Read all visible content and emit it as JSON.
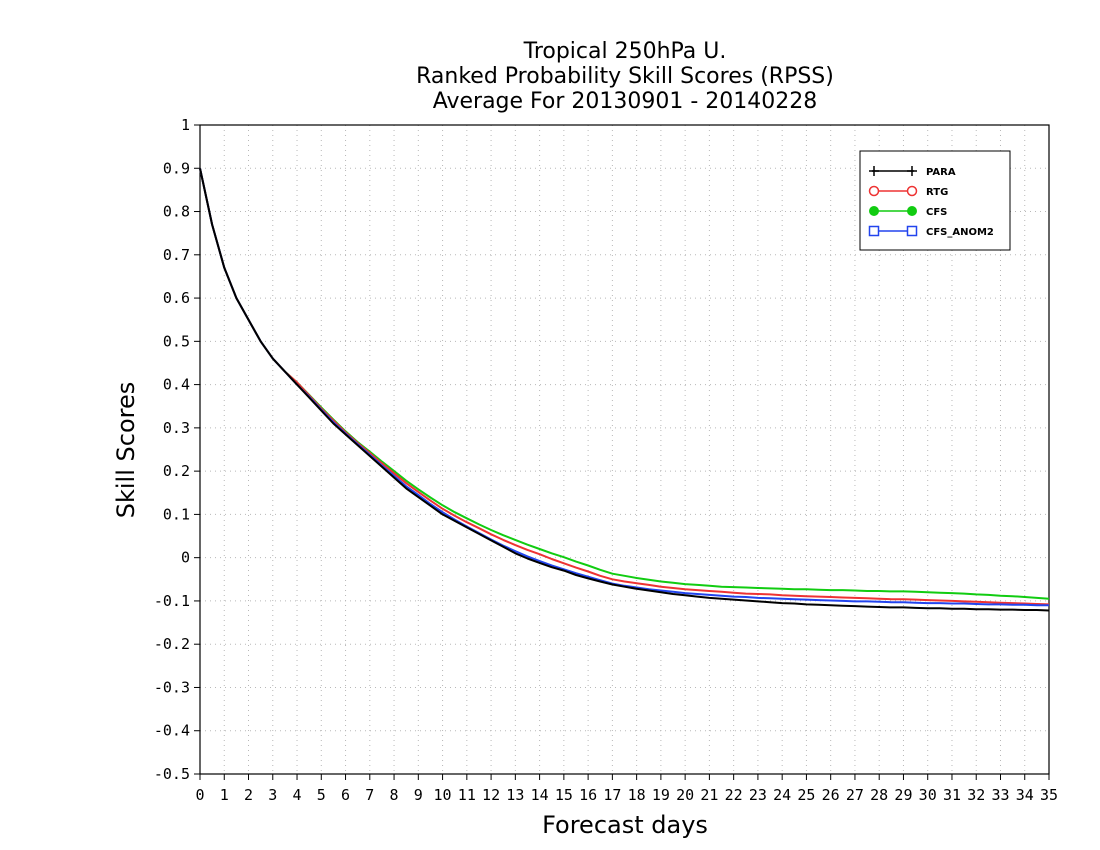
{
  "chart_data": {
    "type": "line",
    "title_lines": [
      "Tropical 250hPa U.",
      "Ranked Probability Skill Scores (RPSS)",
      "Average For 20130901 - 20140228"
    ],
    "xlabel": "Forecast days",
    "ylabel": "Skill Scores",
    "xlim": [
      0,
      35
    ],
    "ylim": [
      -0.5,
      1
    ],
    "xticks": [
      0,
      1,
      2,
      3,
      4,
      5,
      6,
      7,
      8,
      9,
      10,
      11,
      12,
      13,
      14,
      15,
      16,
      17,
      18,
      19,
      20,
      21,
      22,
      23,
      24,
      25,
      26,
      27,
      28,
      29,
      30,
      31,
      32,
      33,
      34,
      35
    ],
    "yticks": [
      -0.5,
      -0.4,
      -0.3,
      -0.2,
      -0.1,
      0,
      0.1,
      0.2,
      0.3,
      0.4,
      0.5,
      0.6,
      0.7,
      0.8,
      0.9,
      1
    ],
    "ytick_labels": [
      "-0.5",
      "-0.4",
      "-0.3",
      "-0.2",
      "-0.1",
      "0",
      "0.1",
      "0.2",
      "0.3",
      "0.4",
      "0.5",
      "0.6",
      "0.7",
      "0.8",
      "0.9",
      "1"
    ],
    "grid": true,
    "legend_position": "top-right",
    "x": [
      0,
      0.5,
      1,
      1.5,
      2,
      2.5,
      3,
      3.5,
      4,
      4.5,
      5,
      5.5,
      6,
      6.5,
      7,
      7.5,
      8,
      8.5,
      9,
      9.5,
      10,
      10.5,
      11,
      11.5,
      12,
      12.5,
      13,
      13.5,
      14,
      14.5,
      15,
      15.5,
      16,
      16.5,
      17,
      17.5,
      18,
      18.5,
      19,
      19.5,
      20,
      20.5,
      21,
      21.5,
      22,
      22.5,
      23,
      23.5,
      24,
      24.5,
      25,
      25.5,
      26,
      26.5,
      27,
      27.5,
      28,
      28.5,
      29,
      29.5,
      30,
      30.5,
      31,
      31.5,
      32,
      32.5,
      33,
      33.5,
      34,
      34.5,
      35
    ],
    "series": [
      {
        "name": "PARA",
        "color": "#000000",
        "marker": "plus",
        "values": [
          0.9,
          0.77,
          0.67,
          0.6,
          0.55,
          0.5,
          0.46,
          0.43,
          0.4,
          0.37,
          0.34,
          0.31,
          0.285,
          0.26,
          0.235,
          0.21,
          0.185,
          0.16,
          0.14,
          0.12,
          0.1,
          0.085,
          0.07,
          0.055,
          0.04,
          0.025,
          0.01,
          -0.002,
          -0.012,
          -0.022,
          -0.03,
          -0.04,
          -0.048,
          -0.055,
          -0.062,
          -0.067,
          -0.072,
          -0.076,
          -0.08,
          -0.084,
          -0.087,
          -0.09,
          -0.093,
          -0.095,
          -0.097,
          -0.099,
          -0.101,
          -0.103,
          -0.105,
          -0.106,
          -0.108,
          -0.109,
          -0.11,
          -0.111,
          -0.112,
          -0.113,
          -0.114,
          -0.115,
          -0.115,
          -0.116,
          -0.117,
          -0.117,
          -0.118,
          -0.118,
          -0.119,
          -0.119,
          -0.12,
          -0.12,
          -0.121,
          -0.121,
          -0.122
        ]
      },
      {
        "name": "RTG",
        "color": "#ee3333",
        "marker": "open-circle",
        "values": [
          0.9,
          0.77,
          0.67,
          0.6,
          0.55,
          0.5,
          0.46,
          0.43,
          0.405,
          0.375,
          0.345,
          0.317,
          0.29,
          0.265,
          0.242,
          0.218,
          0.195,
          0.172,
          0.152,
          0.132,
          0.113,
          0.097,
          0.082,
          0.068,
          0.054,
          0.041,
          0.029,
          0.018,
          0.008,
          -0.003,
          -0.013,
          -0.023,
          -0.032,
          -0.042,
          -0.05,
          -0.055,
          -0.059,
          -0.063,
          -0.067,
          -0.07,
          -0.073,
          -0.075,
          -0.077,
          -0.079,
          -0.081,
          -0.083,
          -0.084,
          -0.085,
          -0.087,
          -0.088,
          -0.089,
          -0.09,
          -0.091,
          -0.092,
          -0.093,
          -0.094,
          -0.095,
          -0.096,
          -0.096,
          -0.097,
          -0.098,
          -0.099,
          -0.1,
          -0.101,
          -0.102,
          -0.103,
          -0.104,
          -0.105,
          -0.106,
          -0.107,
          -0.108
        ]
      },
      {
        "name": "CFS",
        "color": "#11cc11",
        "marker": "filled-circle",
        "values": [
          0.9,
          0.77,
          0.67,
          0.6,
          0.55,
          0.5,
          0.46,
          0.43,
          0.405,
          0.376,
          0.347,
          0.319,
          0.292,
          0.267,
          0.245,
          0.222,
          0.2,
          0.178,
          0.158,
          0.139,
          0.121,
          0.105,
          0.091,
          0.077,
          0.064,
          0.052,
          0.041,
          0.03,
          0.02,
          0.01,
          0.001,
          -0.009,
          -0.018,
          -0.028,
          -0.037,
          -0.042,
          -0.047,
          -0.051,
          -0.055,
          -0.058,
          -0.061,
          -0.063,
          -0.065,
          -0.067,
          -0.068,
          -0.069,
          -0.07,
          -0.071,
          -0.072,
          -0.073,
          -0.073,
          -0.074,
          -0.075,
          -0.075,
          -0.076,
          -0.077,
          -0.077,
          -0.078,
          -0.078,
          -0.079,
          -0.08,
          -0.081,
          -0.082,
          -0.083,
          -0.085,
          -0.086,
          -0.088,
          -0.089,
          -0.091,
          -0.093,
          -0.095
        ]
      },
      {
        "name": "CFS_ANOM2",
        "color": "#2244ee",
        "marker": "open-square",
        "values": [
          0.9,
          0.77,
          0.67,
          0.6,
          0.55,
          0.5,
          0.46,
          0.43,
          0.4,
          0.372,
          0.342,
          0.313,
          0.287,
          0.262,
          0.238,
          0.213,
          0.189,
          0.165,
          0.145,
          0.124,
          0.105,
          0.088,
          0.072,
          0.057,
          0.042,
          0.028,
          0.015,
          0.003,
          -0.008,
          -0.018,
          -0.027,
          -0.036,
          -0.044,
          -0.052,
          -0.06,
          -0.065,
          -0.069,
          -0.073,
          -0.076,
          -0.079,
          -0.082,
          -0.084,
          -0.086,
          -0.088,
          -0.09,
          -0.091,
          -0.093,
          -0.094,
          -0.095,
          -0.096,
          -0.097,
          -0.098,
          -0.099,
          -0.1,
          -0.101,
          -0.101,
          -0.102,
          -0.103,
          -0.103,
          -0.104,
          -0.105,
          -0.105,
          -0.106,
          -0.106,
          -0.107,
          -0.108,
          -0.108,
          -0.109,
          -0.109,
          -0.11,
          -0.11
        ]
      }
    ]
  }
}
